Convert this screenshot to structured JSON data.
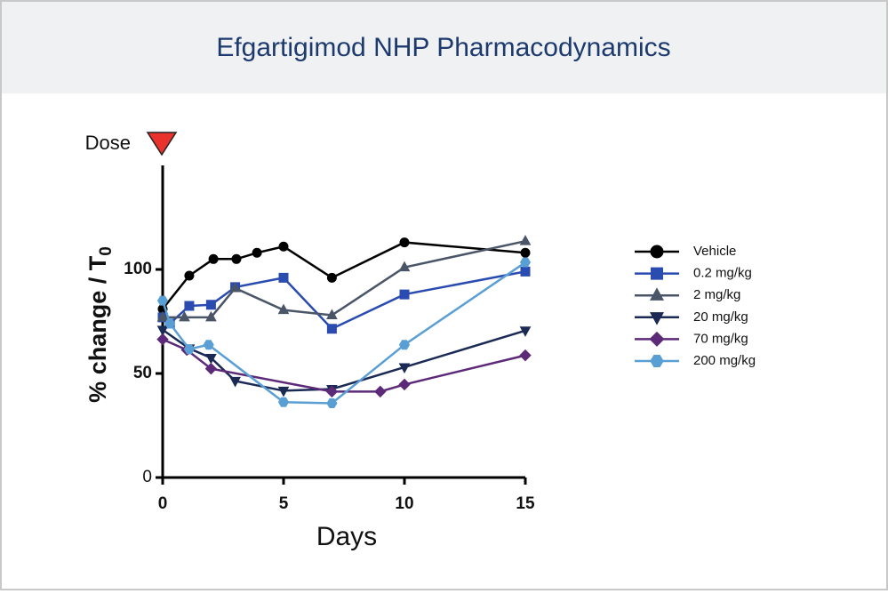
{
  "chart_data": {
    "type": "line",
    "title": "Efgartigimod NHP Pharmacodynamics",
    "xlabel": "Days",
    "ylabel": "% change / T",
    "ylabel_subscript": "0",
    "annotation": {
      "text": "Dose",
      "color": "#e8322b"
    },
    "xlim": [
      0,
      15
    ],
    "xticks": [
      0,
      5,
      10,
      15
    ],
    "ylim": [
      0,
      150
    ],
    "yticks": [
      0,
      50,
      100
    ],
    "legend": "right",
    "series": [
      {
        "name": "Vehicle",
        "color": "#000000",
        "marker": "circle",
        "x": [
          0,
          1.1,
          2.1,
          3.05,
          3.9,
          5,
          7,
          10,
          15
        ],
        "values": [
          81,
          97,
          105,
          105,
          108,
          111,
          96,
          113,
          108
        ]
      },
      {
        "name": "0.2 mg/kg",
        "color": "#2a4bb0",
        "marker": "square",
        "x": [
          0,
          0.3,
          1.1,
          2,
          3,
          5,
          7,
          10,
          15
        ],
        "values": [
          77,
          74,
          82.5,
          83,
          91.5,
          96,
          71.5,
          88,
          99
        ]
      },
      {
        "name": "2 mg/kg",
        "color": "#4b5568",
        "marker": "triangle-up",
        "x": [
          0,
          0.9,
          2,
          3,
          5,
          7,
          10,
          15
        ],
        "values": [
          77,
          77,
          77,
          91,
          80.5,
          78,
          101,
          113.6
        ]
      },
      {
        "name": "20 mg/kg",
        "color": "#1a2a55",
        "marker": "triangle-down",
        "x": [
          0,
          1.1,
          2,
          3,
          5,
          7,
          10,
          15
        ],
        "values": [
          71,
          62,
          57.5,
          46.4,
          41.7,
          42.5,
          53,
          70.6
        ]
      },
      {
        "name": "70 mg/kg",
        "color": "#5c2a78",
        "marker": "diamond",
        "x": [
          0,
          1,
          2,
          7,
          9,
          10,
          15
        ],
        "values": [
          66.4,
          61.3,
          52.3,
          41.3,
          41.3,
          44.7,
          58.7
        ]
      },
      {
        "name": "200 mg/kg",
        "color": "#5a9fd4",
        "marker": "hexagon",
        "x": [
          0,
          0.3,
          1.1,
          1.9,
          5,
          7,
          10,
          15
        ],
        "values": [
          85,
          74,
          61.7,
          63.8,
          36.2,
          35.7,
          63.8,
          103.4
        ]
      }
    ]
  }
}
